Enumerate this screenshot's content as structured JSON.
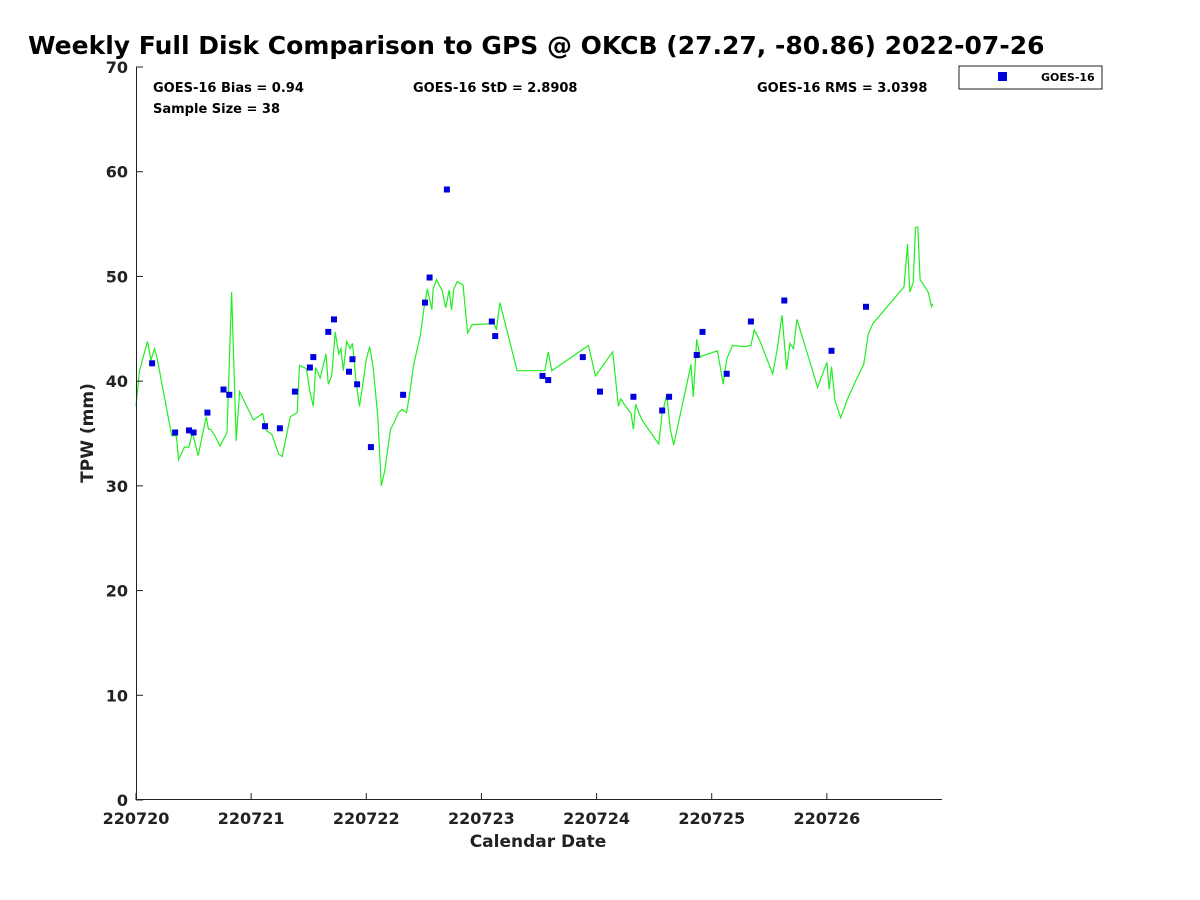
{
  "chart_data": {
    "type": "scatter",
    "title": "Weekly Full Disk Comparison to GPS @ OKCB (27.27, -80.86) 2022-07-26",
    "xlabel": "Calendar Date",
    "ylabel": "TPW (mm)",
    "xlim": [
      220720,
      220727.0
    ],
    "ylim": [
      0,
      70
    ],
    "x_ticks": [
      "220720",
      "220721",
      "220722",
      "220723",
      "220724",
      "220725",
      "220726"
    ],
    "y_ticks": [
      0,
      10,
      20,
      30,
      40,
      50,
      60,
      70
    ],
    "grid": false,
    "legend_position": "top-right",
    "stats": {
      "bias": "GOES-16 Bias = 0.94",
      "sample_size": "Sample Size = 38",
      "std": "GOES-16 StD = 2.8908",
      "rms": "GOES-16 RMS = 3.0398"
    },
    "colors": {
      "goes": "#0000dd",
      "gps": "#22ee22"
    },
    "series": [
      {
        "name": "GOES-16",
        "kind": "markers",
        "x": [
          0.14,
          0.34,
          0.46,
          0.5,
          0.62,
          0.76,
          0.81,
          1.12,
          1.25,
          1.38,
          1.51,
          1.54,
          1.67,
          1.72,
          1.85,
          1.88,
          1.92,
          2.04,
          2.32,
          2.51,
          2.55,
          2.7,
          3.09,
          3.12,
          3.53,
          3.58,
          3.88,
          4.03,
          4.32,
          4.57,
          4.63,
          4.87,
          4.92,
          5.13,
          5.34,
          5.63,
          6.04,
          6.34
        ],
        "y": [
          41.7,
          35.1,
          35.3,
          35.1,
          37.0,
          39.2,
          38.7,
          35.7,
          35.5,
          39.0,
          41.3,
          42.3,
          44.7,
          45.9,
          40.9,
          42.1,
          39.7,
          33.7,
          38.7,
          47.5,
          49.9,
          58.3,
          45.7,
          44.3,
          40.5,
          40.1,
          42.3,
          39.0,
          38.5,
          37.2,
          38.5,
          42.5,
          44.7,
          40.7,
          45.7,
          47.7,
          42.9,
          47.1
        ]
      },
      {
        "name": "",
        "kind": "line",
        "x": [
          0.0,
          0.03,
          0.1,
          0.13,
          0.16,
          0.18,
          0.31,
          0.35,
          0.37,
          0.42,
          0.46,
          0.49,
          0.54,
          0.61,
          0.63,
          0.65,
          0.69,
          0.73,
          0.79,
          0.83,
          0.87,
          0.9,
          1.02,
          1.1,
          1.13,
          1.18,
          1.24,
          1.27,
          1.34,
          1.4,
          1.42,
          1.48,
          1.51,
          1.54,
          1.56,
          1.6,
          1.65,
          1.67,
          1.7,
          1.73,
          1.76,
          1.78,
          1.8,
          1.83,
          1.86,
          1.88,
          1.91,
          1.94,
          1.97,
          2.0,
          2.03,
          2.06,
          2.1,
          2.13,
          2.16,
          2.21,
          2.24,
          2.28,
          2.31,
          2.35,
          2.38,
          2.41,
          2.47,
          2.5,
          2.53,
          2.57,
          2.58,
          2.61,
          2.66,
          2.69,
          2.72,
          2.74,
          2.76,
          2.79,
          2.84,
          2.88,
          2.92,
          3.11,
          3.13,
          3.16,
          3.31,
          3.55,
          3.58,
          3.61,
          3.93,
          3.99,
          4.07,
          4.14,
          4.19,
          4.21,
          4.24,
          4.3,
          4.32,
          4.34,
          4.37,
          4.4,
          4.54,
          4.57,
          4.61,
          4.64,
          4.67,
          4.77,
          4.82,
          4.84,
          4.87,
          4.9,
          4.94,
          5.05,
          5.1,
          5.13,
          5.18,
          5.29,
          5.34,
          5.37,
          5.42,
          5.53,
          5.57,
          5.61,
          5.65,
          5.68,
          5.71,
          5.74,
          5.79,
          5.92,
          6.0,
          6.02,
          6.04,
          6.07,
          6.12,
          6.18,
          6.25,
          6.32,
          6.36,
          6.4,
          6.67,
          6.7,
          6.72,
          6.75,
          6.77,
          6.79,
          6.81,
          6.88,
          6.91,
          6.92
        ],
        "y": [
          37.6,
          41.0,
          43.8,
          42.0,
          43.1,
          42.4,
          34.8,
          34.8,
          32.5,
          33.7,
          33.7,
          35.1,
          32.9,
          36.6,
          35.4,
          35.4,
          34.7,
          33.8,
          35.1,
          48.5,
          34.3,
          39.0,
          36.3,
          36.9,
          35.3,
          34.9,
          33.0,
          32.8,
          36.6,
          37.0,
          41.5,
          41.2,
          39.0,
          37.6,
          41.3,
          40.3,
          42.6,
          39.7,
          40.5,
          44.7,
          42.6,
          43.1,
          41.0,
          43.8,
          43.1,
          43.6,
          40.1,
          37.6,
          39.7,
          42.1,
          43.3,
          41.3,
          36.6,
          30.0,
          31.4,
          35.4,
          36.0,
          37.0,
          37.3,
          37.0,
          39.0,
          41.5,
          44.4,
          46.9,
          48.8,
          46.8,
          48.8,
          49.7,
          48.6,
          47.0,
          48.7,
          46.8,
          48.8,
          49.5,
          49.2,
          44.6,
          45.4,
          45.5,
          44.9,
          47.5,
          41.0,
          41.0,
          42.8,
          41.0,
          43.4,
          40.5,
          41.7,
          42.8,
          37.6,
          38.3,
          37.8,
          36.9,
          35.4,
          37.8,
          36.9,
          36.2,
          34.0,
          36.9,
          38.7,
          35.4,
          33.9,
          39.0,
          41.6,
          38.5,
          44.0,
          42.3,
          42.5,
          42.9,
          39.7,
          42.1,
          43.4,
          43.3,
          43.4,
          44.9,
          43.8,
          40.7,
          43.1,
          46.3,
          41.1,
          43.6,
          43.1,
          45.9,
          44.1,
          39.4,
          41.8,
          39.2,
          41.4,
          38.2,
          36.5,
          38.3,
          40.0,
          41.6,
          44.5,
          45.5,
          49.0,
          53.1,
          48.5,
          49.4,
          54.7,
          54.7,
          49.7,
          48.5,
          47.1,
          47.4
        ]
      }
    ]
  }
}
